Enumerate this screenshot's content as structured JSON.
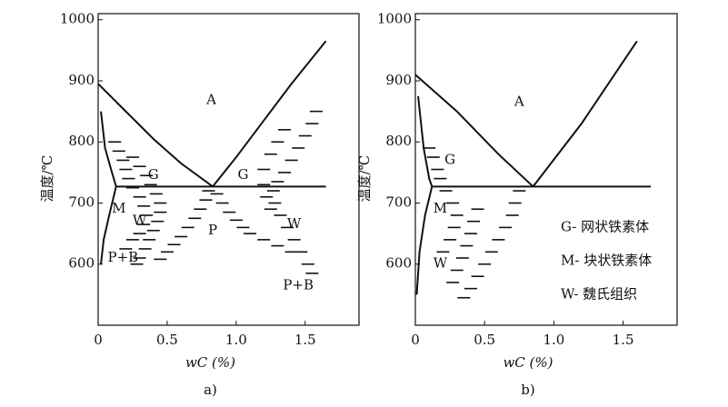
{
  "chart_data": [
    {
      "type": "line",
      "xlabel": "wC (%)",
      "ylabel": "温度/℃",
      "caption": "a)",
      "xlim": [
        0,
        1.89
      ],
      "ylim": [
        500,
        1010
      ],
      "xticks": [
        0,
        0.5,
        {
          "value": 1,
          "label": "1.0"
        },
        1.5
      ],
      "yticks": [
        600,
        700,
        800,
        900,
        1000
      ],
      "series": [
        {
          "style": "line",
          "color": "#111",
          "x": [
            0,
            0.2,
            0.4,
            0.6,
            0.83
          ],
          "values": [
            895,
            850,
            805,
            765,
            727
          ]
        },
        {
          "style": "line",
          "color": "#111",
          "x": [
            0.83,
            1.0,
            1.2,
            1.4,
            1.65
          ],
          "values": [
            727,
            775,
            835,
            895,
            965
          ]
        },
        {
          "style": "line",
          "color": "#111",
          "x": [
            0.13,
            1.65
          ],
          "values": [
            727,
            727
          ]
        },
        {
          "style": "line",
          "color": "#111",
          "x": [
            0.02,
            0.05,
            0.1,
            0.13,
            0.08,
            0.04,
            0.02
          ],
          "values": [
            850,
            790,
            750,
            727,
            680,
            640,
            600
          ]
        },
        {
          "style": "hatch",
          "color": "#111",
          "x": [
            0.12,
            0.15,
            0.18,
            0.2,
            0.22,
            0.25,
            0.3,
            0.33,
            0.35,
            0.33,
            0.3,
            0.25,
            0.2
          ],
          "values": [
            800,
            785,
            770,
            755,
            740,
            725,
            710,
            695,
            680,
            665,
            650,
            640,
            625
          ]
        },
        {
          "style": "hatch",
          "color": "#111",
          "x": [
            0.25,
            0.3,
            0.35,
            0.38,
            0.42,
            0.45,
            0.45,
            0.43,
            0.4,
            0.37,
            0.34,
            0.3,
            0.28
          ],
          "values": [
            775,
            760,
            745,
            730,
            715,
            700,
            685,
            670,
            655,
            640,
            625,
            610,
            600
          ]
        },
        {
          "style": "hatch",
          "color": "#111",
          "x": [
            0.8,
            0.78,
            0.74,
            0.7,
            0.65,
            0.6,
            0.55,
            0.5,
            0.45
          ],
          "values": [
            720,
            705,
            690,
            675,
            660,
            645,
            632,
            620,
            608
          ]
        },
        {
          "style": "hatch",
          "color": "#111",
          "x": [
            0.86,
            0.9,
            0.95,
            1.0,
            1.05,
            1.1,
            1.2,
            1.3,
            1.4
          ],
          "values": [
            715,
            700,
            685,
            672,
            660,
            650,
            640,
            630,
            620
          ]
        },
        {
          "style": "hatch",
          "color": "#111",
          "x": [
            1.58,
            1.55,
            1.5,
            1.45,
            1.4,
            1.35,
            1.3,
            1.27,
            1.28,
            1.32,
            1.37,
            1.42,
            1.47,
            1.52,
            1.55
          ],
          "values": [
            850,
            830,
            810,
            790,
            770,
            750,
            735,
            720,
            700,
            680,
            660,
            640,
            620,
            600,
            585
          ]
        },
        {
          "style": "hatch",
          "color": "#111",
          "x": [
            1.35,
            1.3,
            1.25,
            1.2,
            1.2,
            1.22,
            1.25
          ],
          "values": [
            820,
            800,
            780,
            755,
            730,
            710,
            690
          ]
        }
      ],
      "annotations": [
        {
          "text": "A",
          "x": 0.82,
          "y": 868
        },
        {
          "text": "G",
          "x": 0.4,
          "y": 745
        },
        {
          "text": "G",
          "x": 1.05,
          "y": 745
        },
        {
          "text": "M",
          "x": 0.15,
          "y": 690
        },
        {
          "text": "W",
          "x": 0.3,
          "y": 670
        },
        {
          "text": "P",
          "x": 0.83,
          "y": 655
        },
        {
          "text": "W",
          "x": 1.42,
          "y": 665
        },
        {
          "text": "P+B",
          "x": 0.18,
          "y": 610
        },
        {
          "text": "P+B",
          "x": 1.45,
          "y": 565
        }
      ]
    },
    {
      "type": "line",
      "xlabel": "wC (%)",
      "ylabel": "温度/℃",
      "caption": "b)",
      "xlim": [
        0,
        1.89
      ],
      "ylim": [
        500,
        1010
      ],
      "xticks": [
        0,
        0.5,
        {
          "value": 1,
          "label": "1.0"
        },
        1.5
      ],
      "yticks": [
        600,
        700,
        800,
        900,
        1000
      ],
      "series": [
        {
          "style": "line",
          "color": "#111",
          "x": [
            0,
            0.3,
            0.6,
            0.85
          ],
          "values": [
            910,
            850,
            780,
            727
          ]
        },
        {
          "style": "line",
          "color": "#111",
          "x": [
            0.85,
            1.2,
            1.6
          ],
          "values": [
            727,
            830,
            965
          ]
        },
        {
          "style": "line",
          "color": "#111",
          "x": [
            0.12,
            1.7
          ],
          "values": [
            727,
            727
          ]
        },
        {
          "style": "line",
          "color": "#111",
          "x": [
            0.02,
            0.06,
            0.1,
            0.12,
            0.07,
            0.03,
            0.01
          ],
          "values": [
            875,
            790,
            740,
            727,
            680,
            620,
            550
          ]
        },
        {
          "style": "hatch",
          "color": "#111",
          "x": [
            0.1,
            0.13,
            0.16,
            0.18,
            0.22,
            0.27,
            0.3,
            0.28,
            0.25,
            0.2
          ],
          "values": [
            790,
            775,
            755,
            740,
            720,
            700,
            680,
            660,
            640,
            620
          ]
        },
        {
          "style": "hatch",
          "color": "#111",
          "x": [
            0.45,
            0.42,
            0.4,
            0.37,
            0.34,
            0.3,
            0.27
          ],
          "values": [
            690,
            670,
            650,
            630,
            610,
            590,
            570
          ]
        },
        {
          "style": "hatch",
          "color": "#111",
          "x": [
            0.75,
            0.72,
            0.7,
            0.65,
            0.6,
            0.55,
            0.5,
            0.45,
            0.4,
            0.35
          ],
          "values": [
            720,
            700,
            680,
            660,
            640,
            620,
            600,
            580,
            560,
            545
          ]
        }
      ],
      "annotations": [
        {
          "text": "A",
          "x": 0.75,
          "y": 865
        },
        {
          "text": "G",
          "x": 0.25,
          "y": 770
        },
        {
          "text": "M",
          "x": 0.18,
          "y": 690
        },
        {
          "text": "W",
          "x": 0.18,
          "y": 600
        },
        {
          "text": "G- 网状铁素体",
          "x": 1.05,
          "y": 660
        },
        {
          "text": "M- 块状铁素体",
          "x": 1.05,
          "y": 605
        },
        {
          "text": "W- 魏氏组织",
          "x": 1.05,
          "y": 550
        }
      ]
    }
  ]
}
